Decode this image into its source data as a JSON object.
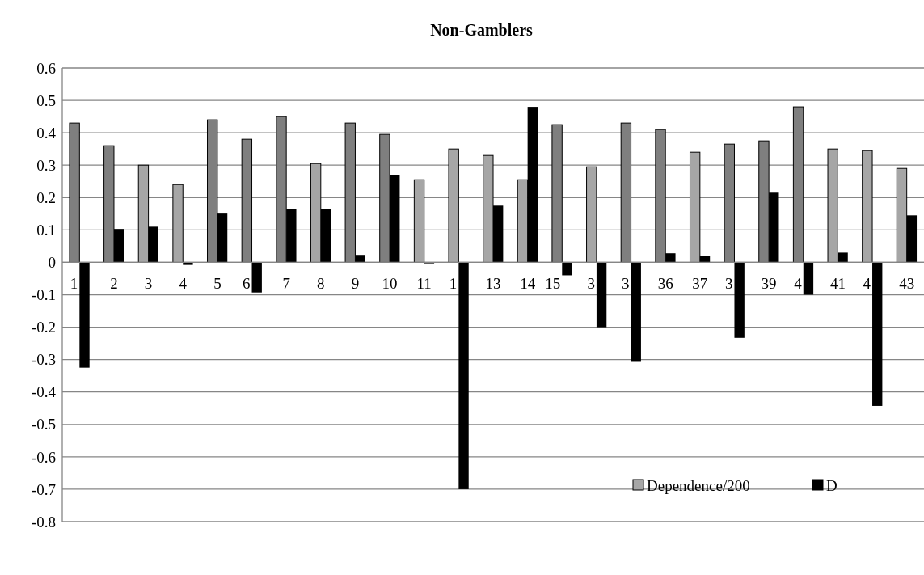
{
  "chart_data": {
    "type": "bar",
    "title": "Non-Gamblers",
    "categories": [
      "1",
      "2",
      "3",
      "4",
      "5",
      "6",
      "7",
      "8",
      "9",
      "10",
      "11",
      "1",
      "13",
      "14",
      "15",
      "3",
      "3",
      "36",
      "37",
      "3",
      "39",
      "4",
      "41",
      "4",
      "43"
    ],
    "series": [
      {
        "name": "Dependence/200",
        "color": "#a6a6a6",
        "colors": [
          "#7f7f7f",
          "#7f7f7f",
          "#a6a6a6",
          "#a6a6a6",
          "#7f7f7f",
          "#7f7f7f",
          "#7f7f7f",
          "#a6a6a6",
          "#7f7f7f",
          "#7f7f7f",
          "#a6a6a6",
          "#a6a6a6",
          "#a6a6a6",
          "#a6a6a6",
          "#7f7f7f",
          "#a6a6a6",
          "#7f7f7f",
          "#7f7f7f",
          "#a6a6a6",
          "#7f7f7f",
          "#7f7f7f",
          "#7f7f7f",
          "#a6a6a6",
          "#a6a6a6",
          "#a6a6a6"
        ],
        "values": [
          0.43,
          0.36,
          0.3,
          0.24,
          0.44,
          0.38,
          0.45,
          0.305,
          0.43,
          0.395,
          0.255,
          0.35,
          0.33,
          0.255,
          0.425,
          0.295,
          0.43,
          0.41,
          0.34,
          0.365,
          0.375,
          0.48,
          0.35,
          0.345,
          0.29
        ]
      },
      {
        "name": "D",
        "color": "#000000",
        "values": [
          -0.325,
          0.103,
          0.11,
          -0.008,
          0.153,
          -0.093,
          0.165,
          0.165,
          0.023,
          0.27,
          -0.003,
          -0.7,
          0.175,
          0.48,
          -0.04,
          -0.2,
          -0.307,
          0.028,
          0.02,
          -0.233,
          0.215,
          -0.1,
          0.03,
          -0.443,
          0.145
        ]
      }
    ],
    "ylim": [
      -0.8,
      0.6
    ],
    "yticks": [
      -0.8,
      -0.7,
      -0.6,
      -0.5,
      -0.4,
      -0.3,
      -0.2,
      -0.1,
      0,
      0.1,
      0.2,
      0.3,
      0.4,
      0.5,
      0.6
    ],
    "grid": "y",
    "legend": "bottom right"
  }
}
